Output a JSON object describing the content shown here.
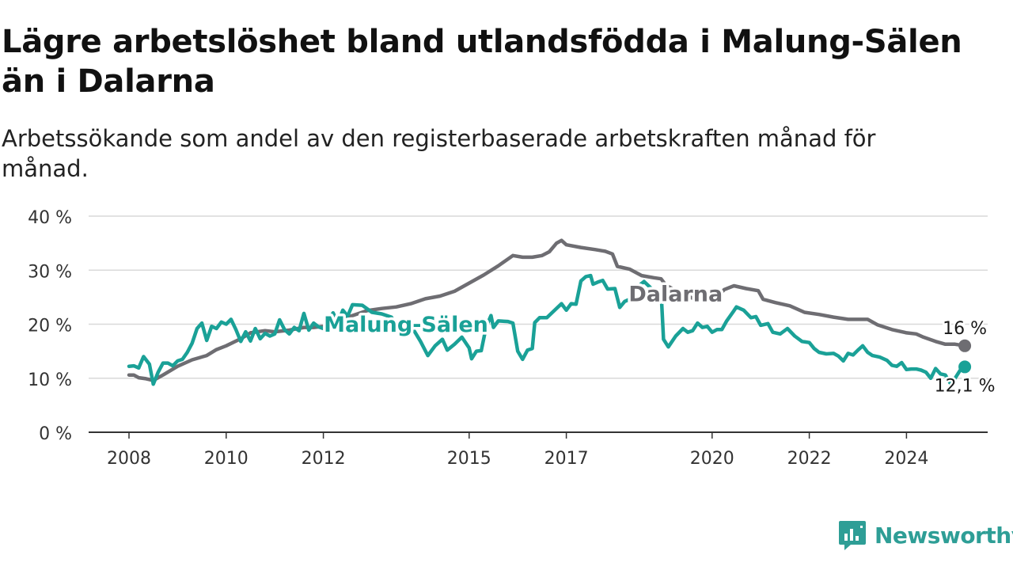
{
  "header": {
    "title": "Lägre arbetslöshet bland utlandsfödda i Malung-Sälen än i Dalarna",
    "subtitle": "Arbetssökande som andel av den registerbaserade arbetskraften månad för månad."
  },
  "brand": {
    "name": "Newsworthy"
  },
  "colors": {
    "malung": "#1aa197",
    "dalarna": "#6e6d72",
    "grid": "#d9d9d9",
    "axis": "#333333"
  },
  "chart_data": {
    "type": "line",
    "title": "Lägre arbetslöshet bland utlandsfödda i Malung-Sälen än i Dalarna",
    "subtitle": "Arbetssökande som andel av den registerbaserade arbetskraften månad för månad.",
    "xlabel": "",
    "ylabel": "",
    "ylim": [
      0,
      40
    ],
    "xlim": [
      2008,
      2025.75
    ],
    "grid": true,
    "y_ticks": [
      {
        "value": 0,
        "label": "0 %"
      },
      {
        "value": 10,
        "label": "10 %"
      },
      {
        "value": 20,
        "label": "20 %"
      },
      {
        "value": 30,
        "label": "30 %"
      },
      {
        "value": 40,
        "label": "40 %"
      }
    ],
    "x_ticks": [
      {
        "value": 2008,
        "label": "2008"
      },
      {
        "value": 2010,
        "label": "2010"
      },
      {
        "value": 2012,
        "label": "2012"
      },
      {
        "value": 2015,
        "label": "2015"
      },
      {
        "value": 2017,
        "label": "2017"
      },
      {
        "value": 2020,
        "label": "2020"
      },
      {
        "value": 2022,
        "label": "2022"
      },
      {
        "value": 2024,
        "label": "2024"
      }
    ],
    "series": [
      {
        "name": "Dalarna",
        "end_label": "16 %",
        "points": [
          [
            2008.0,
            10.6
          ],
          [
            2008.1,
            10.6
          ],
          [
            2008.2,
            10.1
          ],
          [
            2008.35,
            9.9
          ],
          [
            2008.5,
            9.6
          ],
          [
            2008.7,
            10.6
          ],
          [
            2009.0,
            12.2
          ],
          [
            2009.3,
            13.4
          ],
          [
            2009.6,
            14.2
          ],
          [
            2009.8,
            15.3
          ],
          [
            2010.0,
            16.0
          ],
          [
            2010.3,
            17.3
          ],
          [
            2010.5,
            18.4
          ],
          [
            2010.8,
            18.8
          ],
          [
            2011.0,
            18.6
          ],
          [
            2011.3,
            18.9
          ],
          [
            2011.6,
            19.4
          ],
          [
            2011.8,
            19.4
          ],
          [
            2012.0,
            19.6
          ],
          [
            2012.3,
            20.6
          ],
          [
            2012.6,
            21.6
          ],
          [
            2012.9,
            22.5
          ],
          [
            2013.2,
            22.9
          ],
          [
            2013.5,
            23.2
          ],
          [
            2013.8,
            23.8
          ],
          [
            2014.1,
            24.7
          ],
          [
            2014.4,
            25.2
          ],
          [
            2014.7,
            26.1
          ],
          [
            2015.0,
            27.6
          ],
          [
            2015.3,
            29.1
          ],
          [
            2015.6,
            30.8
          ],
          [
            2015.9,
            32.7
          ],
          [
            2016.1,
            32.4
          ],
          [
            2016.3,
            32.4
          ],
          [
            2016.5,
            32.7
          ],
          [
            2016.65,
            33.4
          ],
          [
            2016.8,
            35.0
          ],
          [
            2016.9,
            35.5
          ],
          [
            2017.0,
            34.7
          ],
          [
            2017.3,
            34.2
          ],
          [
            2017.6,
            33.8
          ],
          [
            2017.8,
            33.5
          ],
          [
            2017.95,
            33.0
          ],
          [
            2018.05,
            30.7
          ],
          [
            2018.3,
            30.2
          ],
          [
            2018.55,
            29.0
          ],
          [
            2018.8,
            28.6
          ],
          [
            2018.95,
            28.4
          ],
          [
            2019.05,
            27.2
          ],
          [
            2019.2,
            26.5
          ],
          [
            2019.4,
            25.6
          ],
          [
            2019.6,
            24.8
          ],
          [
            2019.8,
            24.3
          ],
          [
            2020.0,
            24.5
          ],
          [
            2020.1,
            25.0
          ],
          [
            2020.25,
            26.4
          ],
          [
            2020.45,
            27.1
          ],
          [
            2020.7,
            26.6
          ],
          [
            2020.95,
            26.2
          ],
          [
            2021.05,
            24.6
          ],
          [
            2021.3,
            24.0
          ],
          [
            2021.6,
            23.4
          ],
          [
            2021.9,
            22.2
          ],
          [
            2022.2,
            21.8
          ],
          [
            2022.5,
            21.3
          ],
          [
            2022.8,
            20.9
          ],
          [
            2023.2,
            20.9
          ],
          [
            2023.4,
            19.9
          ],
          [
            2023.7,
            19.0
          ],
          [
            2024.0,
            18.4
          ],
          [
            2024.2,
            18.2
          ],
          [
            2024.35,
            17.6
          ],
          [
            2024.6,
            16.8
          ],
          [
            2024.8,
            16.3
          ],
          [
            2025.0,
            16.3
          ],
          [
            2025.2,
            16.0
          ]
        ]
      },
      {
        "name": "Malung-Sälen",
        "end_label": "12,1 %",
        "points": [
          [
            2008.0,
            12.2
          ],
          [
            2008.1,
            12.3
          ],
          [
            2008.2,
            11.9
          ],
          [
            2008.3,
            14.0
          ],
          [
            2008.42,
            12.6
          ],
          [
            2008.5,
            8.9
          ],
          [
            2008.6,
            11.1
          ],
          [
            2008.7,
            12.8
          ],
          [
            2008.8,
            12.8
          ],
          [
            2008.9,
            12.3
          ],
          [
            2009.0,
            13.2
          ],
          [
            2009.1,
            13.5
          ],
          [
            2009.2,
            14.8
          ],
          [
            2009.3,
            16.5
          ],
          [
            2009.4,
            19.2
          ],
          [
            2009.5,
            20.2
          ],
          [
            2009.6,
            17.0
          ],
          [
            2009.7,
            19.6
          ],
          [
            2009.8,
            19.2
          ],
          [
            2009.9,
            20.4
          ],
          [
            2010.0,
            20.0
          ],
          [
            2010.1,
            20.9
          ],
          [
            2010.2,
            19.0
          ],
          [
            2010.3,
            16.8
          ],
          [
            2010.4,
            18.6
          ],
          [
            2010.5,
            16.9
          ],
          [
            2010.6,
            19.2
          ],
          [
            2010.7,
            17.3
          ],
          [
            2010.8,
            18.3
          ],
          [
            2010.9,
            17.8
          ],
          [
            2011.0,
            18.2
          ],
          [
            2011.1,
            20.8
          ],
          [
            2011.2,
            19.0
          ],
          [
            2011.3,
            18.2
          ],
          [
            2011.4,
            19.4
          ],
          [
            2011.5,
            18.8
          ],
          [
            2011.6,
            22.0
          ],
          [
            2011.7,
            18.9
          ],
          [
            2011.8,
            20.2
          ],
          [
            2011.9,
            19.5
          ],
          [
            2012.0,
            19.2
          ],
          [
            2012.1,
            20.5
          ],
          [
            2012.2,
            22.1
          ],
          [
            2012.3,
            20.2
          ],
          [
            2012.4,
            22.6
          ],
          [
            2012.5,
            21.5
          ],
          [
            2012.6,
            23.6
          ],
          [
            2012.8,
            23.5
          ],
          [
            2013.0,
            22.2
          ],
          [
            2013.2,
            21.9
          ],
          [
            2013.4,
            21.3
          ],
          [
            2013.5,
            19.8
          ],
          [
            2013.6,
            20.6
          ],
          [
            2013.8,
            19.8
          ],
          [
            2014.0,
            16.8
          ],
          [
            2014.15,
            14.2
          ],
          [
            2014.3,
            16.0
          ],
          [
            2014.45,
            17.2
          ],
          [
            2014.55,
            15.2
          ],
          [
            2014.7,
            16.3
          ],
          [
            2014.85,
            17.6
          ],
          [
            2015.0,
            15.6
          ],
          [
            2015.05,
            13.6
          ],
          [
            2015.15,
            15.0
          ],
          [
            2015.25,
            15.1
          ],
          [
            2015.35,
            19.5
          ],
          [
            2015.45,
            21.6
          ],
          [
            2015.5,
            19.4
          ],
          [
            2015.6,
            20.6
          ],
          [
            2015.8,
            20.5
          ],
          [
            2015.9,
            20.2
          ],
          [
            2016.0,
            15.0
          ],
          [
            2016.1,
            13.5
          ],
          [
            2016.2,
            15.2
          ],
          [
            2016.3,
            15.5
          ],
          [
            2016.35,
            20.3
          ],
          [
            2016.45,
            21.2
          ],
          [
            2016.6,
            21.2
          ],
          [
            2016.75,
            22.5
          ],
          [
            2016.9,
            23.8
          ],
          [
            2017.0,
            22.6
          ],
          [
            2017.1,
            23.8
          ],
          [
            2017.2,
            23.7
          ],
          [
            2017.3,
            28.0
          ],
          [
            2017.4,
            28.8
          ],
          [
            2017.5,
            29.0
          ],
          [
            2017.55,
            27.4
          ],
          [
            2017.65,
            27.8
          ],
          [
            2017.75,
            28.1
          ],
          [
            2017.85,
            26.5
          ],
          [
            2018.0,
            26.6
          ],
          [
            2018.1,
            23.1
          ],
          [
            2018.2,
            24.2
          ],
          [
            2018.3,
            24.6
          ],
          [
            2018.45,
            26.8
          ],
          [
            2018.6,
            27.9
          ],
          [
            2018.8,
            26.2
          ],
          [
            2018.95,
            26.2
          ],
          [
            2019.0,
            17.2
          ],
          [
            2019.1,
            15.8
          ],
          [
            2019.25,
            17.8
          ],
          [
            2019.4,
            19.2
          ],
          [
            2019.5,
            18.5
          ],
          [
            2019.6,
            18.8
          ],
          [
            2019.7,
            20.2
          ],
          [
            2019.8,
            19.4
          ],
          [
            2019.9,
            19.6
          ],
          [
            2020.0,
            18.5
          ],
          [
            2020.1,
            19.0
          ],
          [
            2020.2,
            19.0
          ],
          [
            2020.3,
            20.6
          ],
          [
            2020.45,
            22.5
          ],
          [
            2020.5,
            23.2
          ],
          [
            2020.65,
            22.6
          ],
          [
            2020.8,
            21.2
          ],
          [
            2020.9,
            21.4
          ],
          [
            2021.0,
            19.8
          ],
          [
            2021.15,
            20.1
          ],
          [
            2021.25,
            18.5
          ],
          [
            2021.4,
            18.2
          ],
          [
            2021.55,
            19.2
          ],
          [
            2021.7,
            17.8
          ],
          [
            2021.85,
            16.8
          ],
          [
            2022.0,
            16.6
          ],
          [
            2022.1,
            15.5
          ],
          [
            2022.2,
            14.8
          ],
          [
            2022.35,
            14.5
          ],
          [
            2022.5,
            14.6
          ],
          [
            2022.6,
            14.1
          ],
          [
            2022.7,
            13.2
          ],
          [
            2022.8,
            14.6
          ],
          [
            2022.9,
            14.3
          ],
          [
            2023.0,
            15.2
          ],
          [
            2023.1,
            16.0
          ],
          [
            2023.2,
            14.8
          ],
          [
            2023.3,
            14.2
          ],
          [
            2023.45,
            13.9
          ],
          [
            2023.6,
            13.3
          ],
          [
            2023.7,
            12.4
          ],
          [
            2023.8,
            12.2
          ],
          [
            2023.9,
            12.9
          ],
          [
            2024.0,
            11.6
          ],
          [
            2024.1,
            11.7
          ],
          [
            2024.2,
            11.7
          ],
          [
            2024.3,
            11.5
          ],
          [
            2024.4,
            11.1
          ],
          [
            2024.5,
            10.0
          ],
          [
            2024.6,
            11.8
          ],
          [
            2024.7,
            10.8
          ],
          [
            2024.8,
            10.6
          ],
          [
            2024.9,
            9.1
          ],
          [
            2025.0,
            10.0
          ],
          [
            2025.1,
            11.4
          ],
          [
            2025.2,
            12.1
          ]
        ]
      }
    ],
    "series_labels": [
      {
        "series": "Malung-Sälen",
        "text": "Malung-Sälen",
        "x": 2013.7,
        "y": 20.1
      },
      {
        "series": "Dalarna",
        "text": "Dalarna",
        "x": 2019.25,
        "y": 25.7
      }
    ],
    "end_labels": [
      {
        "series": "Dalarna",
        "text": "16 %",
        "x": 2025.2,
        "y": 16.0
      },
      {
        "series": "Malung-Sälen",
        "text": "12,1 %",
        "x": 2025.2,
        "y": 12.1
      }
    ]
  }
}
